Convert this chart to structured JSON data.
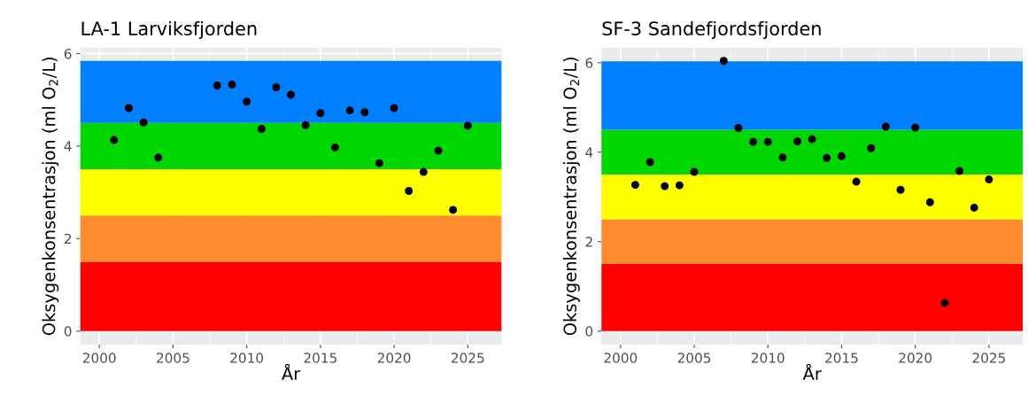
{
  "chart_data": [
    {
      "type": "scatter",
      "title": "LA-1 Larviksfjorden",
      "xlabel": "År",
      "ylabel": "Oksygenkonsentrasjon (ml O$_{2}$/L)",
      "marker": "circle",
      "grid": true,
      "x": [
        2001,
        2002,
        2003,
        2004,
        2008,
        2009,
        2010,
        2011,
        2012,
        2013,
        2014,
        2015,
        2016,
        2017,
        2018,
        2019,
        2020,
        2021,
        2022,
        2023,
        2024,
        2025
      ],
      "series": [
        {
          "color": "#000000",
          "values": [
            4.13,
            4.82,
            4.51,
            3.75,
            5.31,
            5.33,
            4.96,
            4.37,
            5.27,
            5.11,
            4.45,
            4.71,
            3.97,
            4.77,
            4.73,
            3.63,
            4.82,
            3.03,
            3.44,
            3.9,
            2.62,
            4.44
          ]
        }
      ],
      "bands": [
        {
          "axis": "y",
          "from": 0,
          "to": 1.5,
          "color": "#ff0000"
        },
        {
          "axis": "y",
          "from": 1.5,
          "to": 2.5,
          "color": "#fe8b2d"
        },
        {
          "axis": "y",
          "from": 2.5,
          "to": 3.5,
          "color": "#ffff00"
        },
        {
          "axis": "y",
          "from": 3.5,
          "to": 4.5,
          "color": "#00d600"
        },
        {
          "axis": "y",
          "from": 4.5,
          "to": 5.84,
          "color": "#007fff"
        }
      ],
      "xlim": [
        1998.7,
        2027.3
      ],
      "xticks": [
        2000,
        2005,
        2010,
        2015,
        2020,
        2025
      ],
      "ylim": [
        -0.29,
        6.13
      ],
      "yticks": [
        0,
        2,
        4,
        6
      ]
    },
    {
      "type": "scatter",
      "title": "SF-3 Sandefjordsfjorden",
      "xlabel": "År",
      "ylabel": "Oksygenkonsentrasjon (ml O$_{2}$/L)",
      "marker": "circle",
      "grid": true,
      "x": [
        2001,
        2002,
        2003,
        2004,
        2005,
        2007,
        2008,
        2009,
        2010,
        2011,
        2012,
        2013,
        2014,
        2015,
        2016,
        2017,
        2018,
        2019,
        2020,
        2021,
        2022,
        2023,
        2024,
        2025
      ],
      "series": [
        {
          "color": "#000000",
          "values": [
            3.27,
            3.78,
            3.24,
            3.26,
            3.56,
            6.04,
            4.54,
            4.23,
            4.23,
            3.88,
            4.24,
            4.29,
            3.87,
            3.91,
            3.34,
            4.09,
            4.57,
            3.16,
            4.55,
            2.88,
            0.63,
            3.58,
            2.76,
            3.39
          ]
        }
      ],
      "bands": [
        {
          "axis": "y",
          "from": 0,
          "to": 1.5,
          "color": "#ff0000"
        },
        {
          "axis": "y",
          "from": 1.5,
          "to": 2.5,
          "color": "#fe8b2d"
        },
        {
          "axis": "y",
          "from": 2.5,
          "to": 3.5,
          "color": "#ffff00"
        },
        {
          "axis": "y",
          "from": 3.5,
          "to": 4.5,
          "color": "#00d600"
        },
        {
          "axis": "y",
          "from": 4.5,
          "to": 6.03,
          "color": "#007fff"
        }
      ],
      "xlim": [
        1998.7,
        2027.3
      ],
      "xticks": [
        2000,
        2005,
        2010,
        2015,
        2020,
        2025
      ],
      "ylim": [
        -0.3,
        6.34
      ],
      "yticks": [
        0,
        2,
        4,
        6
      ]
    }
  ]
}
